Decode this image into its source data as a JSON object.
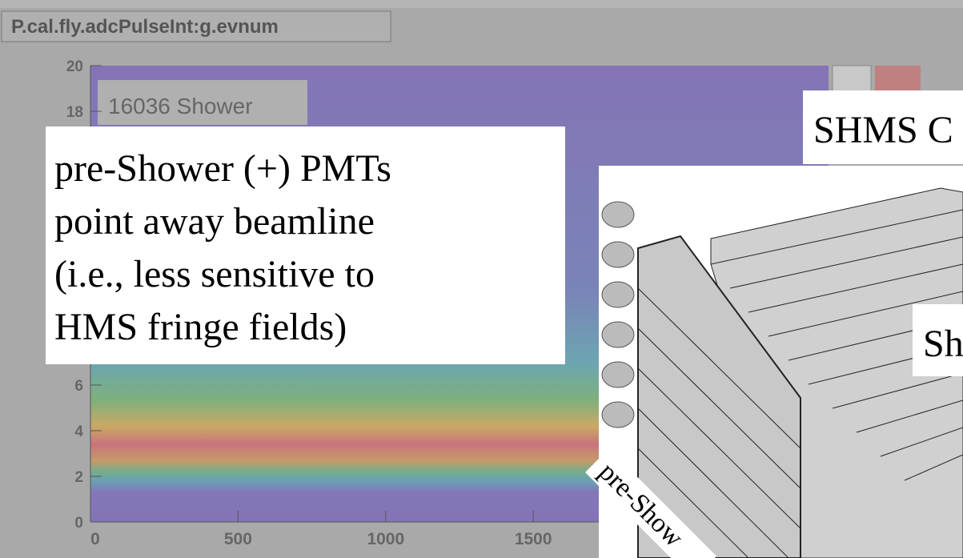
{
  "plot": {
    "title": "P.cal.fly.adcPulseInt:g.evnum",
    "stats": "16036  Shower",
    "xlim": [
      0,
      2500
    ],
    "ylim": [
      0,
      20
    ],
    "xticks": [
      0,
      500,
      1000,
      1500
    ],
    "yticks": [
      0,
      2,
      4,
      6,
      18,
      20
    ]
  },
  "annotation": {
    "lines": [
      "pre-Shower (+) PMTs",
      "point away beamline",
      "(i.e., less sensitive to",
      "HMS fringe fields)"
    ]
  },
  "label_shms": "SHMS C",
  "label_shower": "Sh",
  "label_preshower": "pre-Show"
}
